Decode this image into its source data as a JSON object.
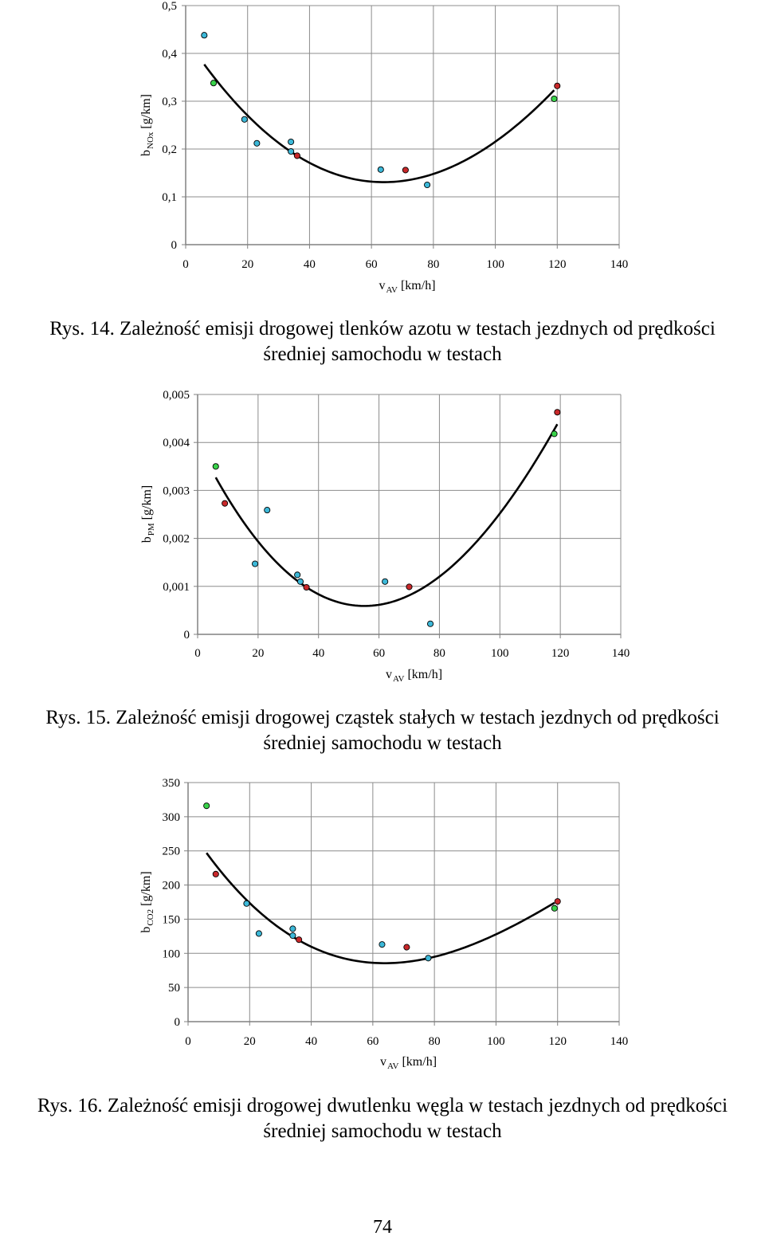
{
  "chart_data": [
    {
      "type": "scatter",
      "title": "",
      "xlabel": "v",
      "xlabel_sub": "AV",
      "xlabel_unit": "[km/h]",
      "ylabel": "b",
      "ylabel_sub": "NOx",
      "ylabel_unit": "[g/km]",
      "xlim": [
        0,
        140
      ],
      "ylim": [
        0,
        0.5
      ],
      "x_ticks": [
        "0",
        "20",
        "40",
        "60",
        "80",
        "100",
        "120",
        "140"
      ],
      "x_tick_values": [
        0,
        20,
        40,
        60,
        80,
        100,
        120,
        140
      ],
      "y_ticks": [
        "0",
        "0,1",
        "0,2",
        "0,3",
        "0,4",
        "0,5"
      ],
      "y_tick_values": [
        0,
        0.1,
        0.2,
        0.3,
        0.4,
        0.5
      ],
      "grid": true,
      "series": [
        {
          "color": "#3cb8d8",
          "points": [
            [
              6,
              0.438
            ],
            [
              19,
              0.262
            ],
            [
              23,
              0.212
            ],
            [
              34,
              0.215
            ],
            [
              34,
              0.195
            ],
            [
              63,
              0.157
            ],
            [
              78,
              0.125
            ]
          ]
        },
        {
          "color": "#39d34a",
          "points": [
            [
              9,
              0.338
            ],
            [
              119,
              0.305
            ]
          ]
        },
        {
          "color": "#c8282a",
          "points": [
            [
              36,
              0.186
            ],
            [
              71,
              0.156
            ],
            [
              120,
              0.332
            ]
          ]
        }
      ],
      "trend": {
        "color": "#000000",
        "x_from": 6,
        "x_to": 119,
        "points": [
          [
            6,
            0.377
          ],
          [
            36,
            0.186
          ],
          [
            66,
            0.131
          ],
          [
            119,
            0.323
          ]
        ]
      }
    },
    {
      "type": "scatter",
      "title": "",
      "xlabel": "v",
      "xlabel_sub": "AV",
      "xlabel_unit": "[km/h]",
      "ylabel": "b",
      "ylabel_sub": "PM",
      "ylabel_unit": "[g/km]",
      "xlim": [
        0,
        140
      ],
      "ylim": [
        0,
        0.005
      ],
      "x_ticks": [
        "0",
        "20",
        "40",
        "60",
        "80",
        "100",
        "120",
        "140"
      ],
      "x_tick_values": [
        0,
        20,
        40,
        60,
        80,
        100,
        120,
        140
      ],
      "y_ticks": [
        "0",
        "0,001",
        "0,002",
        "0,003",
        "0,004",
        "0,005"
      ],
      "y_tick_values": [
        0,
        0.001,
        0.002,
        0.003,
        0.004,
        0.005
      ],
      "grid": true,
      "series": [
        {
          "color": "#3cb8d8",
          "points": [
            [
              19,
              0.00147
            ],
            [
              23,
              0.00259
            ],
            [
              33,
              0.00124
            ],
            [
              34,
              0.0011
            ],
            [
              62,
              0.0011
            ],
            [
              77,
              0.00022
            ]
          ]
        },
        {
          "color": "#39d34a",
          "points": [
            [
              6,
              0.0035
            ],
            [
              118,
              0.00418
            ]
          ]
        },
        {
          "color": "#c8282a",
          "points": [
            [
              9,
              0.00273
            ],
            [
              36,
              0.00098
            ],
            [
              70,
              0.00099
            ],
            [
              119,
              0.00463
            ]
          ]
        }
      ],
      "trend": {
        "color": "#000000",
        "x_from": 6,
        "x_to": 119,
        "points": [
          [
            6,
            0.00327
          ],
          [
            30,
            0.00127
          ],
          [
            58,
            0.0006
          ],
          [
            119,
            0.00438
          ]
        ]
      }
    },
    {
      "type": "scatter",
      "title": "",
      "xlabel": "v",
      "xlabel_sub": "AV",
      "xlabel_unit": "[km/h]",
      "ylabel": "b",
      "ylabel_sub": "CO2",
      "ylabel_unit": "[g/km]",
      "xlim": [
        0,
        140
      ],
      "ylim": [
        0,
        350
      ],
      "x_ticks": [
        "0",
        "20",
        "40",
        "60",
        "80",
        "100",
        "120",
        "140"
      ],
      "x_tick_values": [
        0,
        20,
        40,
        60,
        80,
        100,
        120,
        140
      ],
      "y_ticks": [
        "0",
        "50",
        "100",
        "150",
        "200",
        "250",
        "300",
        "350"
      ],
      "y_tick_values": [
        0,
        50,
        100,
        150,
        200,
        250,
        300,
        350
      ],
      "grid": true,
      "series": [
        {
          "color": "#3cb8d8",
          "points": [
            [
              19,
              173
            ],
            [
              23,
              129
            ],
            [
              34,
              136
            ],
            [
              34,
              126
            ],
            [
              63,
              113
            ],
            [
              78,
              93
            ]
          ]
        },
        {
          "color": "#39d34a",
          "points": [
            [
              6,
              316
            ],
            [
              119,
              166
            ]
          ]
        },
        {
          "color": "#c8282a",
          "points": [
            [
              9,
              216
            ],
            [
              36,
              120
            ],
            [
              71,
              109
            ],
            [
              120,
              176
            ]
          ]
        }
      ],
      "trend": {
        "color": "#000000",
        "x_from": 6,
        "x_to": 119,
        "points": [
          [
            6,
            247
          ],
          [
            36,
            119
          ],
          [
            70,
            87
          ],
          [
            119,
            174
          ]
        ]
      }
    }
  ],
  "captions": [
    {
      "line1": "Rys. 14. Zależność emisji drogowej tlenków azotu w testach jezdnych od prędkości",
      "line2": "średniej samochodu w testach"
    },
    {
      "line1": "Rys. 15. Zależność emisji drogowej cząstek stałych w testach jezdnych od prędkości",
      "line2": "średniej samochodu w testach"
    },
    {
      "line1": "Rys. 16. Zależność emisji drogowej dwutlenku węgla w testach jezdnych od prędkości",
      "line2": "średniej samochodu w testach"
    }
  ],
  "page_number": "74"
}
